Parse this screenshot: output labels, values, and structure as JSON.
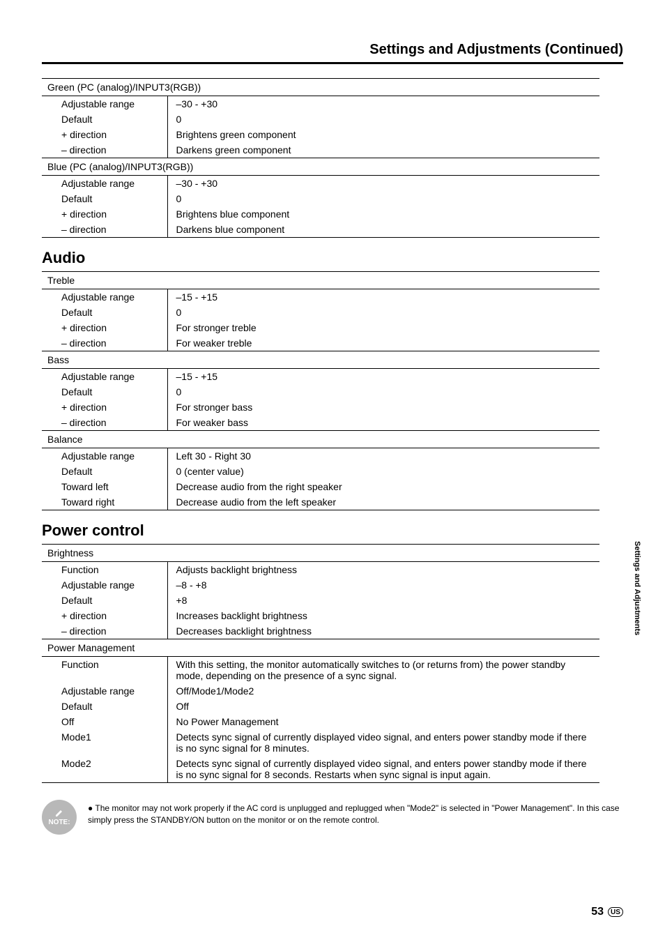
{
  "page": {
    "header": "Settings and Adjustments (Continued)",
    "side_tab": "Settings and\nAdjustments",
    "page_number": "53",
    "region_code": "US"
  },
  "note": {
    "label": "NOTE:",
    "text": "The monitor may not work properly if the AC cord is unplugged and replugged when \"Mode2\" is selected in \"Power Management\". In this case simply press the STANDBY/ON button on the monitor or on the remote control."
  },
  "sections": [
    {
      "title": "",
      "groups": [
        {
          "header": "Green (PC (analog)/INPUT3(RGB))",
          "rows": [
            {
              "label": "Adjustable range",
              "value": "–30 - +30"
            },
            {
              "label": "Default",
              "value": "0"
            },
            {
              "label": "+ direction",
              "value": "Brightens green component"
            },
            {
              "label": "– direction",
              "value": "Darkens green component"
            }
          ]
        },
        {
          "header": "Blue (PC (analog)/INPUT3(RGB))",
          "rows": [
            {
              "label": "Adjustable range",
              "value": "–30 - +30"
            },
            {
              "label": "Default",
              "value": "0"
            },
            {
              "label": "+ direction",
              "value": "Brightens blue component"
            },
            {
              "label": "– direction",
              "value": "Darkens blue component"
            }
          ]
        }
      ]
    },
    {
      "title": "Audio",
      "groups": [
        {
          "header": "Treble",
          "rows": [
            {
              "label": "Adjustable range",
              "value": "–15 - +15"
            },
            {
              "label": "Default",
              "value": "0"
            },
            {
              "label": "+ direction",
              "value": "For stronger treble"
            },
            {
              "label": "– direction",
              "value": "For weaker treble"
            }
          ]
        },
        {
          "header": "Bass",
          "rows": [
            {
              "label": "Adjustable range",
              "value": "–15 - +15"
            },
            {
              "label": "Default",
              "value": "0"
            },
            {
              "label": "+ direction",
              "value": "For stronger bass"
            },
            {
              "label": "– direction",
              "value": "For weaker bass"
            }
          ]
        },
        {
          "header": "Balance",
          "rows": [
            {
              "label": "Adjustable range",
              "value": "Left 30 - Right 30"
            },
            {
              "label": "Default",
              "value": "0 (center value)"
            },
            {
              "label": "Toward left",
              "value": "Decrease audio from the right speaker"
            },
            {
              "label": "Toward right",
              "value": "Decrease audio from the left speaker"
            }
          ]
        }
      ]
    },
    {
      "title": "Power control",
      "groups": [
        {
          "header": "Brightness",
          "rows": [
            {
              "label": "Function",
              "value": "Adjusts backlight brightness"
            },
            {
              "label": "Adjustable range",
              "value": "–8 - +8"
            },
            {
              "label": "Default",
              "value": "+8"
            },
            {
              "label": "+ direction",
              "value": "Increases backlight brightness"
            },
            {
              "label": "– direction",
              "value": "Decreases backlight brightness"
            }
          ]
        },
        {
          "header": "Power Management",
          "rows": [
            {
              "label": "Function",
              "value": "With this setting, the monitor automatically switches to (or returns from) the power standby mode, depending on the presence of a sync signal."
            },
            {
              "label": "Adjustable range",
              "value": "Off/Mode1/Mode2"
            },
            {
              "label": "Default",
              "value": "Off"
            },
            {
              "label": "Off",
              "value": "No Power Management"
            },
            {
              "label": "Mode1",
              "value": "Detects sync signal of currently displayed video signal, and enters power standby mode if there is no sync signal for 8 minutes."
            },
            {
              "label": "Mode2",
              "value": "Detects sync signal of currently displayed video signal, and enters power standby mode if there is no sync signal for 8 seconds. Restarts when sync signal is input again."
            }
          ]
        }
      ]
    }
  ],
  "style": {
    "text_color": "#000000",
    "bg_color": "#ffffff",
    "note_badge_bg": "#b8b8b8",
    "base_font_size": 14,
    "header_font_size": 20,
    "section_title_font_size": 22
  }
}
